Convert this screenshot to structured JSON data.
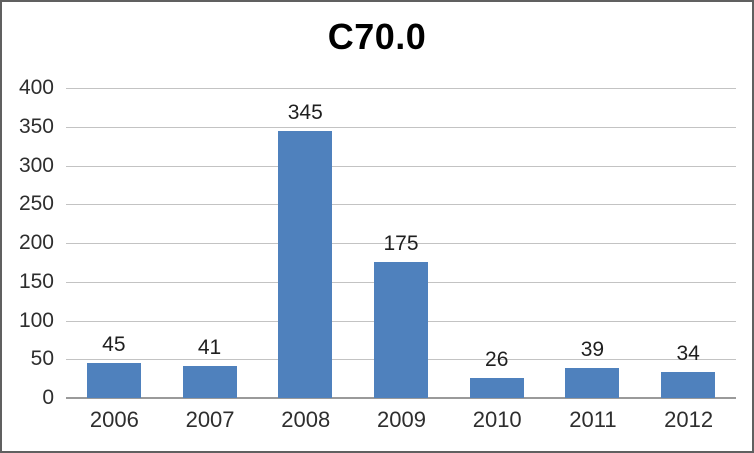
{
  "chart_data": {
    "type": "bar",
    "title": "C70.0",
    "categories": [
      "2006",
      "2007",
      "2008",
      "2009",
      "2010",
      "2011",
      "2012"
    ],
    "values": [
      45,
      41,
      345,
      175,
      26,
      39,
      34
    ],
    "data_labels": [
      "45",
      "41",
      "345",
      "175",
      "26",
      "39",
      "34"
    ],
    "xlabel": "",
    "ylabel": "",
    "ylim": [
      0,
      400
    ],
    "ytick_interval": 50,
    "yticks": [
      0,
      50,
      100,
      150,
      200,
      250,
      300,
      350,
      400
    ],
    "grid": true,
    "legend_position": "none",
    "colors": {
      "bar_fill": "#4f81bd",
      "gridline": "#c3c3c3",
      "axis_line": "#9a9a9a",
      "tick_text": "#2e2e2e",
      "value_text": "#1f1f1f",
      "title_text": "#000000",
      "frame_border": "#606060",
      "background": "#ffffff"
    }
  }
}
